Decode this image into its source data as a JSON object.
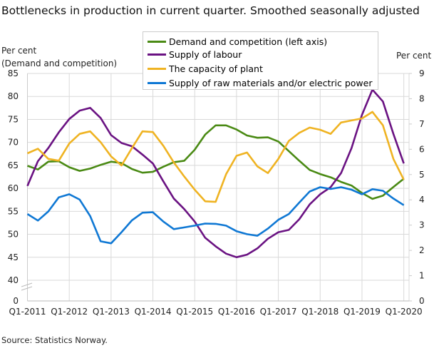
{
  "chart_data": {
    "type": "line",
    "title": "Bottlenecks in production in current quarter. Smoothed seasonally adjusted",
    "ylabel_left": [
      "Per cent",
      "(Demand  and competition)"
    ],
    "ylabel_right": "Per cent",
    "source": "Source: Statistics Norway.",
    "x_tick_labels": [
      "Q1-2011",
      "Q1-2012",
      "Q1-2013",
      "Q1-2014",
      "Q1-2015",
      "Q1-2016",
      "Q1-2017",
      "Q1-2018",
      "Q1-2019",
      "Q1-2020"
    ],
    "x_range": [
      "Q1-2011",
      "Q1-2020"
    ],
    "left_axis": {
      "ticks": [
        0,
        40,
        45,
        50,
        55,
        60,
        65,
        70,
        75,
        80,
        85
      ],
      "range": [
        0,
        85
      ],
      "broken_between": [
        0,
        40
      ]
    },
    "right_axis": {
      "ticks": [
        0,
        1,
        2,
        3,
        4,
        5,
        6,
        7,
        8,
        9
      ],
      "range": [
        0,
        9
      ]
    },
    "grid": true,
    "legend_placement": "top-center",
    "series": [
      {
        "name": "Demand and competition (left axis)",
        "axis": "left",
        "color": "#4a8a14",
        "values": [
          64.9,
          64.1,
          65.8,
          65.9,
          64.6,
          63.8,
          64.3,
          65.1,
          65.8,
          65.5,
          64.2,
          63.4,
          63.6,
          64.7,
          65.7,
          66.0,
          68.4,
          71.7,
          73.7,
          73.7,
          72.8,
          71.5,
          71.0,
          71.1,
          70.2,
          68.1,
          66.0,
          64.0,
          63.1,
          62.4,
          61.4,
          60.6,
          59.0,
          57.7,
          58.4,
          60.3,
          62.1
        ]
      },
      {
        "name": "Supply of labour",
        "axis": "right",
        "color": "#6a1282",
        "values": [
          4.55,
          5.53,
          6.05,
          6.67,
          7.2,
          7.53,
          7.64,
          7.24,
          6.56,
          6.25,
          6.12,
          5.79,
          5.44,
          4.73,
          4.05,
          3.63,
          3.14,
          2.5,
          2.16,
          1.87,
          1.73,
          1.83,
          2.08,
          2.46,
          2.72,
          2.81,
          3.23,
          3.82,
          4.22,
          4.5,
          5.06,
          6.05,
          7.36,
          8.36,
          7.89,
          6.61,
          5.44
        ]
      },
      {
        "name": "The capacity of plant",
        "axis": "right",
        "color": "#efb322",
        "values": [
          5.84,
          6.02,
          5.62,
          5.55,
          6.23,
          6.61,
          6.71,
          6.28,
          5.72,
          5.36,
          6.05,
          6.71,
          6.68,
          6.14,
          5.48,
          4.92,
          4.4,
          3.94,
          3.92,
          5.01,
          5.74,
          5.87,
          5.32,
          5.06,
          5.62,
          6.33,
          6.65,
          6.86,
          6.77,
          6.61,
          7.06,
          7.14,
          7.22,
          7.48,
          6.95,
          5.62,
          4.8
        ]
      },
      {
        "name": "Supply of raw materials and/or electric power",
        "axis": "right",
        "color": "#0f78d4",
        "values": [
          3.44,
          3.18,
          3.54,
          4.1,
          4.22,
          4.01,
          3.36,
          2.36,
          2.28,
          2.72,
          3.19,
          3.49,
          3.51,
          3.14,
          2.84,
          2.91,
          2.98,
          3.06,
          3.05,
          2.98,
          2.76,
          2.64,
          2.58,
          2.86,
          3.21,
          3.44,
          3.89,
          4.33,
          4.5,
          4.43,
          4.5,
          4.4,
          4.22,
          4.42,
          4.36,
          4.05,
          3.79
        ]
      }
    ]
  }
}
